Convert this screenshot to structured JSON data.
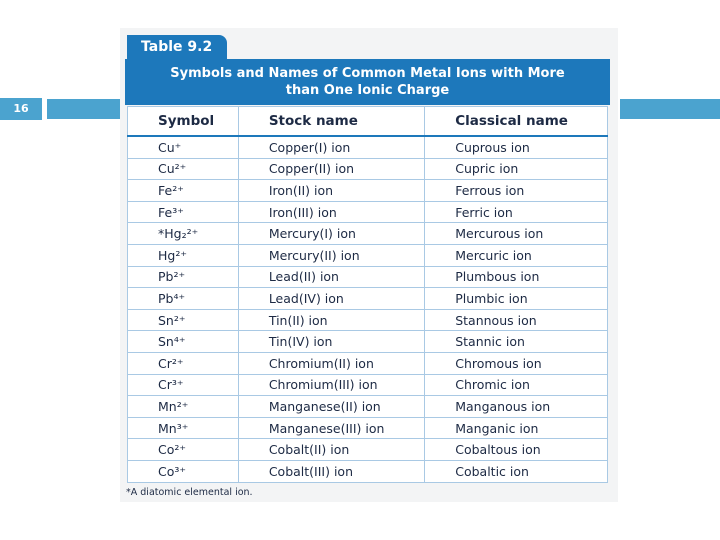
{
  "slide_number": "16",
  "table": {
    "label": "Table 9.2",
    "caption": "Symbols and Names of Common Metal Ions with More than One Ionic Charge",
    "columns": [
      "Symbol",
      "Stock name",
      "Classical name"
    ],
    "rows": [
      [
        "Cu⁺",
        "Copper(I) ion",
        "Cuprous ion"
      ],
      [
        "Cu²⁺",
        "Copper(II) ion",
        "Cupric ion"
      ],
      [
        "Fe²⁺",
        "Iron(II) ion",
        "Ferrous ion"
      ],
      [
        "Fe³⁺",
        "Iron(III) ion",
        "Ferric ion"
      ],
      [
        "*Hg₂²⁺",
        "Mercury(I) ion",
        "Mercurous ion"
      ],
      [
        "Hg²⁺",
        "Mercury(II) ion",
        "Mercuric ion"
      ],
      [
        "Pb²⁺",
        "Lead(II) ion",
        "Plumbous ion"
      ],
      [
        "Pb⁴⁺",
        "Lead(IV) ion",
        "Plumbic ion"
      ],
      [
        "Sn²⁺",
        "Tin(II) ion",
        "Stannous ion"
      ],
      [
        "Sn⁴⁺",
        "Tin(IV) ion",
        "Stannic ion"
      ],
      [
        "Cr²⁺",
        "Chromium(II) ion",
        "Chromous ion"
      ],
      [
        "Cr³⁺",
        "Chromium(III) ion",
        "Chromic ion"
      ],
      [
        "Mn²⁺",
        "Manganese(II) ion",
        "Manganous ion"
      ],
      [
        "Mn³⁺",
        "Manganese(III) ion",
        "Manganic ion"
      ],
      [
        "Co²⁺",
        "Cobalt(II) ion",
        "Cobaltous ion"
      ],
      [
        "Co³⁺",
        "Cobalt(III) ion",
        "Cobaltic ion"
      ]
    ],
    "footnote": "*A diatomic elemental ion."
  }
}
